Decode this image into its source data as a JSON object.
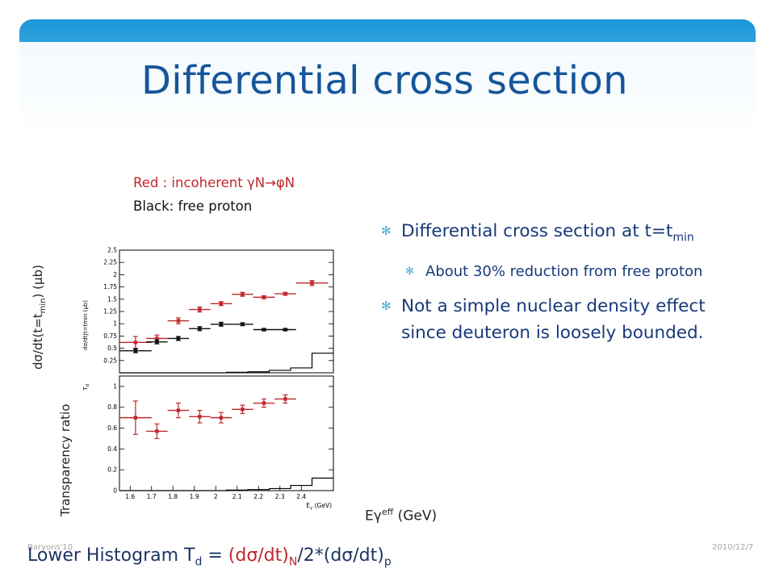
{
  "slide": {
    "title": "Differential cross section",
    "legend_red": "Red : incoherent γN→φN",
    "legend_black": "Black: free proton",
    "ylabel_upper": "dσ/dt(t=t",
    "ylabel_upper_sub": "min",
    "ylabel_upper_tail": ") (μb)",
    "ylabel_lower": "Transparency ratio",
    "xlabel_main": "Eγ",
    "xlabel_sup": "eff",
    "xlabel_tail": " (GeV)",
    "bullets": {
      "b1_text": "Differential cross section at t=t",
      "b1_sub": "min",
      "b2_text": "About 30% reduction from free proton",
      "b3_text": "Not a simple nuclear density effect since deuteron is loosely bounded."
    },
    "footer_left": "Baryons'10",
    "footer_right": "2010/12/7",
    "formula": {
      "prefix": "Lower Histogram T",
      "sub_d": "d",
      "eq": " = ",
      "red_part": "(dσ/dt)",
      "sub_N": "N",
      "mid": "/2*(dσ/dt)",
      "sub_p": "p"
    },
    "colors": {
      "accent": "#1d96d6",
      "title": "#15569a",
      "text": "#173a79",
      "red": "#c0272d"
    }
  },
  "chart_data": [
    {
      "type": "scatter",
      "panel": "upper",
      "ylabel_inner": "dσ/dt|t=tmin (μb)",
      "xlim": [
        1.55,
        2.55
      ],
      "ylim": [
        0,
        2.5
      ],
      "yticks": [
        0.25,
        0.5,
        0.75,
        1,
        1.25,
        1.5,
        1.75,
        2,
        2.25,
        2.5
      ],
      "ytick_labels": [
        "0.25",
        "0.5",
        "0.75",
        "1",
        "1.25",
        "1.5",
        "1.75",
        "2",
        "2.25",
        "2.5"
      ],
      "series": [
        {
          "color": "#c0272d",
          "points": [
            {
              "x": 1.625,
              "y": 0.62,
              "xerr": 0.075,
              "yerr": 0.12
            },
            {
              "x": 1.725,
              "y": 0.7,
              "xerr": 0.05,
              "yerr": 0.07
            },
            {
              "x": 1.825,
              "y": 1.06,
              "xerr": 0.05,
              "yerr": 0.06
            },
            {
              "x": 1.925,
              "y": 1.29,
              "xerr": 0.05,
              "yerr": 0.05
            },
            {
              "x": 2.025,
              "y": 1.41,
              "xerr": 0.05,
              "yerr": 0.04
            },
            {
              "x": 2.125,
              "y": 1.6,
              "xerr": 0.05,
              "yerr": 0.04
            },
            {
              "x": 2.225,
              "y": 1.54,
              "xerr": 0.05,
              "yerr": 0.03
            },
            {
              "x": 2.325,
              "y": 1.61,
              "xerr": 0.05,
              "yerr": 0.03
            },
            {
              "x": 2.45,
              "y": 1.83,
              "xerr": 0.075,
              "yerr": 0.05
            }
          ]
        },
        {
          "color": "#111111",
          "points": [
            {
              "x": 1.625,
              "y": 0.45,
              "xerr": 0.075,
              "yerr": 0.04
            },
            {
              "x": 1.725,
              "y": 0.63,
              "xerr": 0.05,
              "yerr": 0.04
            },
            {
              "x": 1.825,
              "y": 0.7,
              "xerr": 0.05,
              "yerr": 0.04
            },
            {
              "x": 1.925,
              "y": 0.9,
              "xerr": 0.05,
              "yerr": 0.04
            },
            {
              "x": 2.025,
              "y": 0.99,
              "xerr": 0.05,
              "yerr": 0.04
            },
            {
              "x": 2.125,
              "y": 0.99,
              "xerr": 0.05,
              "yerr": 0.03
            },
            {
              "x": 2.225,
              "y": 0.88,
              "xerr": 0.05,
              "yerr": 0.02
            },
            {
              "x": 2.325,
              "y": 0.88,
              "xerr": 0.05,
              "yerr": 0.02
            }
          ]
        }
      ],
      "histogram": {
        "edges": [
          1.55,
          2.05,
          2.15,
          2.25,
          2.35,
          2.45,
          2.55
        ],
        "values": [
          0.0,
          0.01,
          0.02,
          0.05,
          0.1,
          0.4
        ]
      }
    },
    {
      "type": "scatter",
      "panel": "lower",
      "ylabel_inner": "T",
      "ylabel_inner_sub": "d",
      "xlabel": "E",
      "xlabel_sub": "γ",
      "xlabel_unit": "(GeV)",
      "xlim": [
        1.55,
        2.55
      ],
      "ylim": [
        0,
        1.1
      ],
      "yticks": [
        0,
        0.2,
        0.4,
        0.6,
        0.8,
        1
      ],
      "ytick_labels": [
        "0",
        "0.2",
        "0.4",
        "0.6",
        "0.8",
        "1"
      ],
      "xticks": [
        1.6,
        1.7,
        1.8,
        1.9,
        2,
        2.1,
        2.2,
        2.3,
        2.4
      ],
      "xtick_labels": [
        "1.6",
        "1.7",
        "1.8",
        "1.9",
        "2",
        "2.1",
        "2.2",
        "2.3",
        "2.4"
      ],
      "series": [
        {
          "color": "#c0272d",
          "points": [
            {
              "x": 1.625,
              "y": 0.7,
              "xerr": 0.075,
              "yerr": 0.16
            },
            {
              "x": 1.725,
              "y": 0.57,
              "xerr": 0.05,
              "yerr": 0.07
            },
            {
              "x": 1.825,
              "y": 0.77,
              "xerr": 0.05,
              "yerr": 0.07
            },
            {
              "x": 1.925,
              "y": 0.71,
              "xerr": 0.05,
              "yerr": 0.06
            },
            {
              "x": 2.025,
              "y": 0.7,
              "xerr": 0.05,
              "yerr": 0.05
            },
            {
              "x": 2.125,
              "y": 0.78,
              "xerr": 0.05,
              "yerr": 0.04
            },
            {
              "x": 2.225,
              "y": 0.84,
              "xerr": 0.05,
              "yerr": 0.04
            },
            {
              "x": 2.325,
              "y": 0.88,
              "xerr": 0.05,
              "yerr": 0.04
            }
          ]
        }
      ],
      "histogram": {
        "edges": [
          1.55,
          2.05,
          2.15,
          2.25,
          2.35,
          2.45,
          2.55
        ],
        "values": [
          0.0,
          0.005,
          0.01,
          0.02,
          0.05,
          0.12
        ]
      }
    }
  ]
}
